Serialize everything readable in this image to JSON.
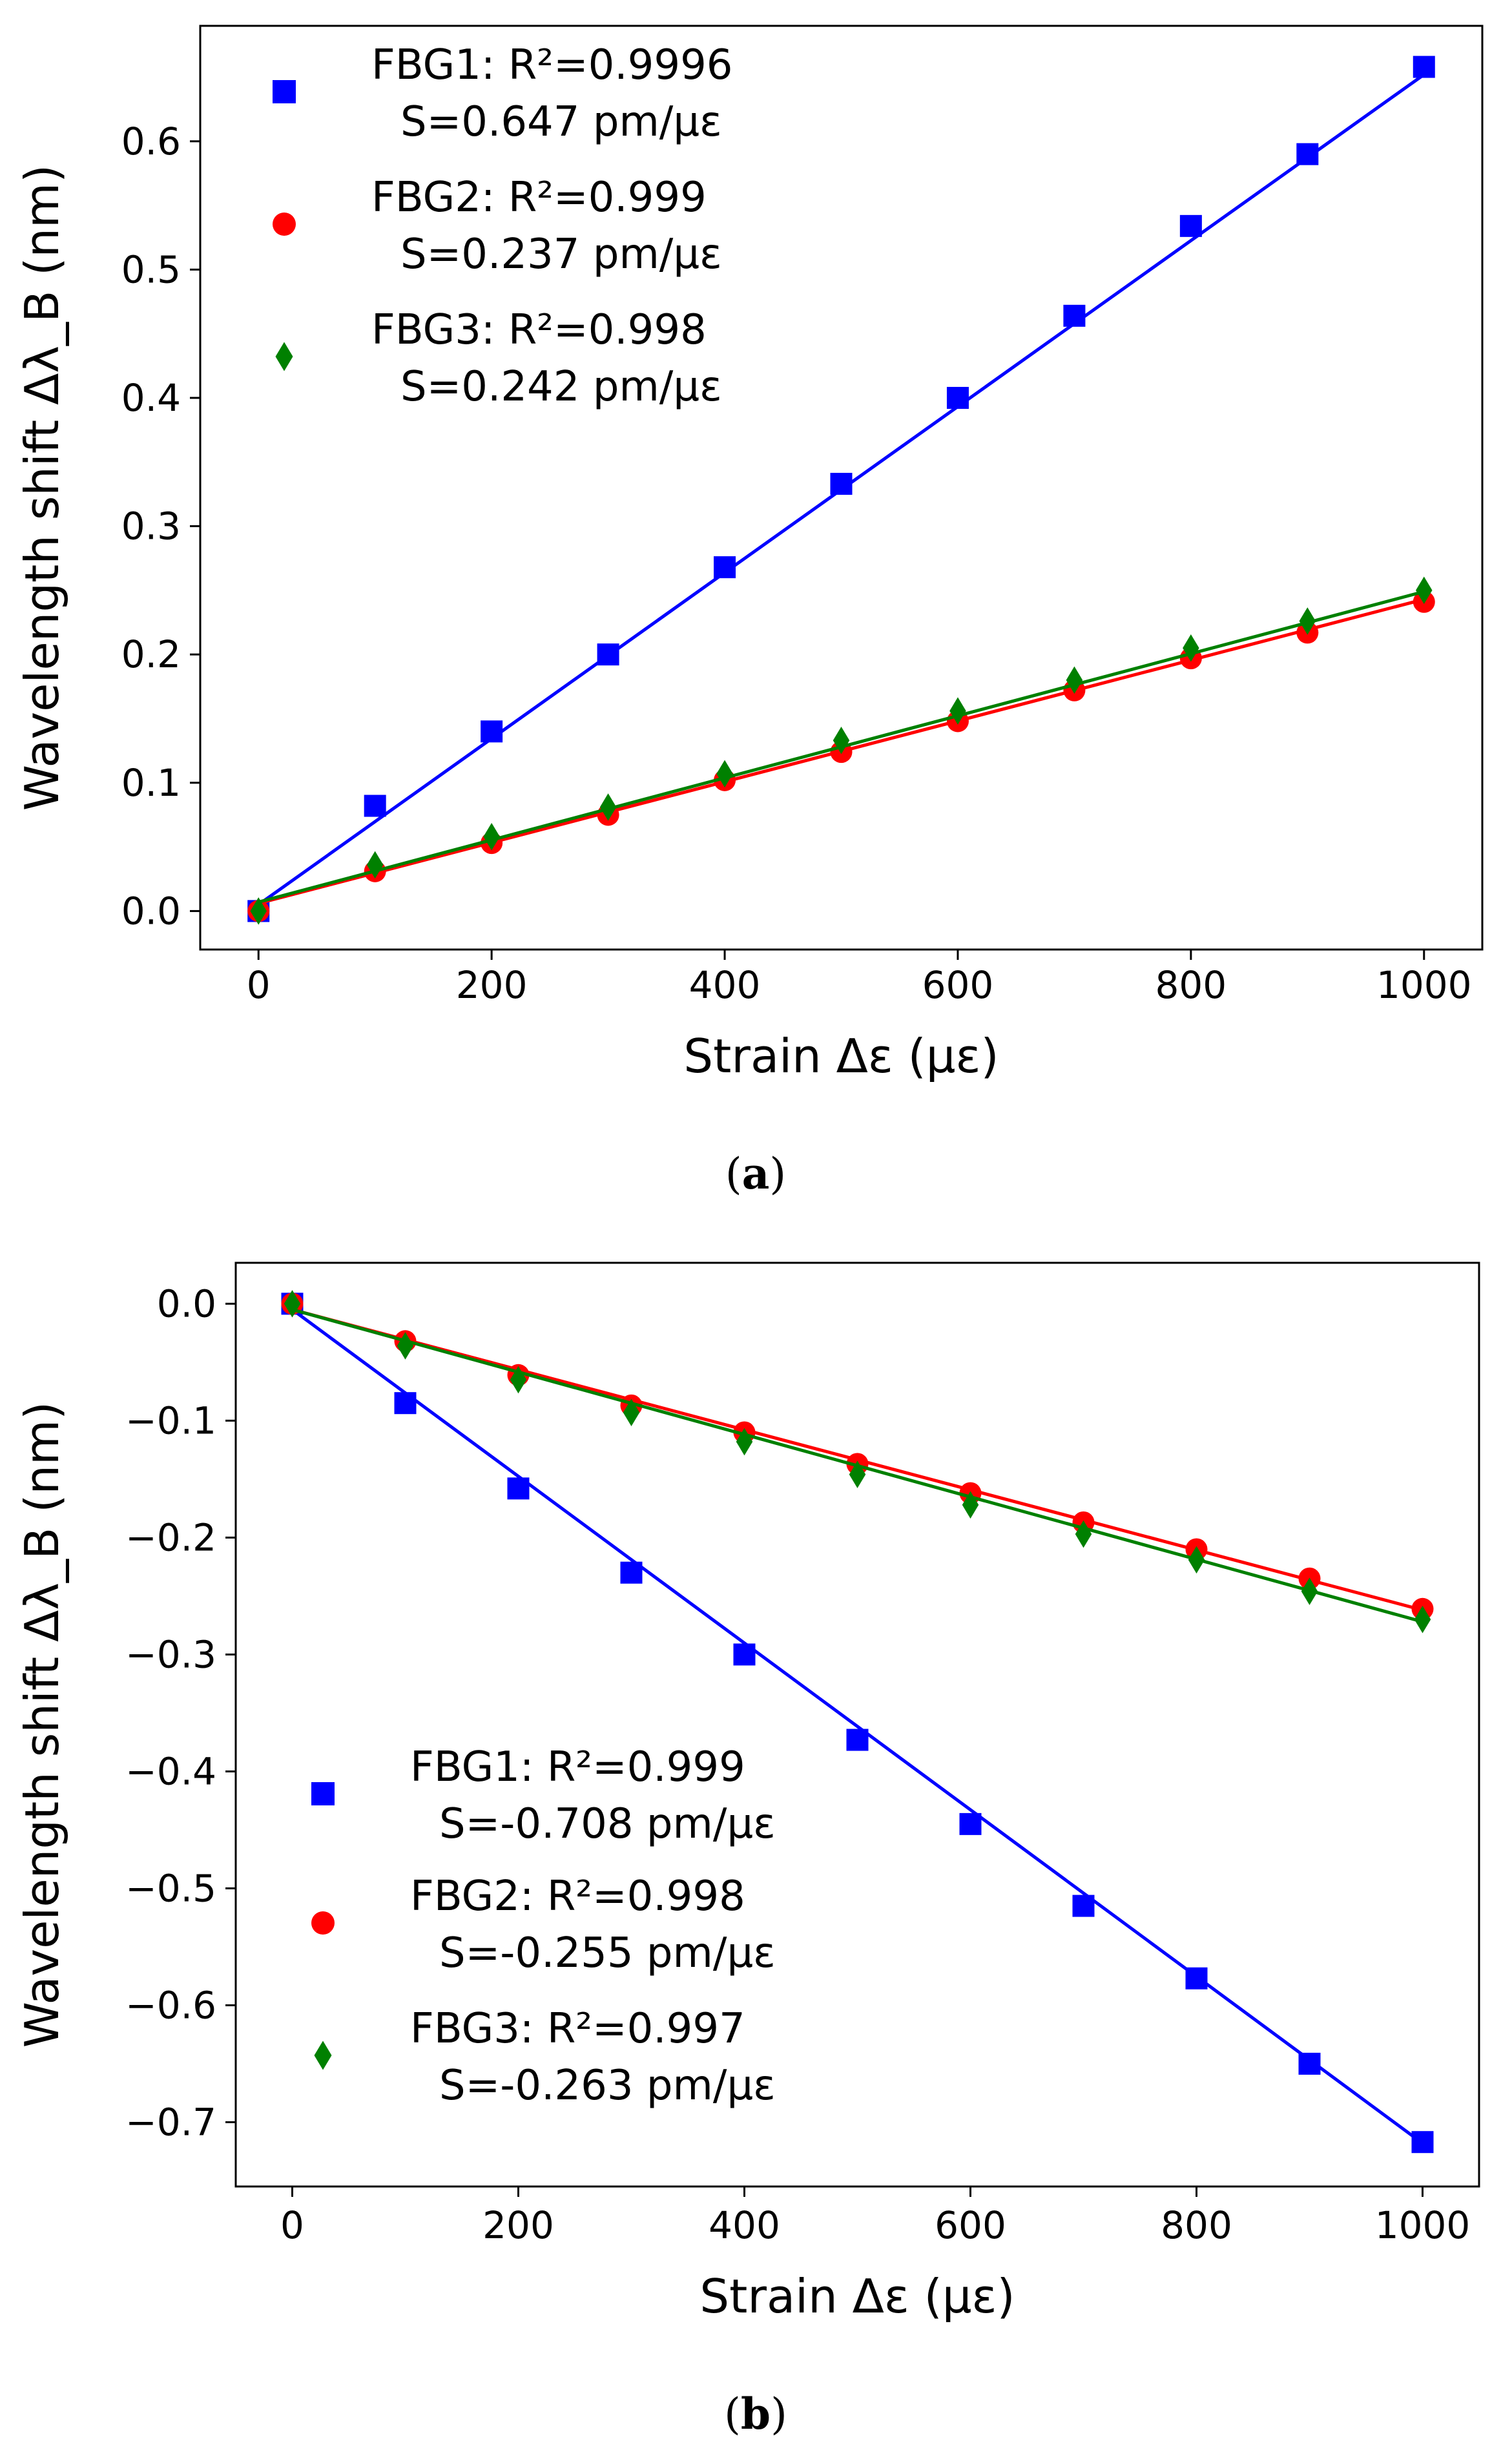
{
  "chart_data": [
    {
      "type": "scatter",
      "caption": "(a)",
      "caption_letter": "a",
      "xlabel": "Strain Δε (με)",
      "ylabel": "Wavelength shift Δλ_B (nm)",
      "xlim": [
        -50,
        1050
      ],
      "ylim": [
        -0.03,
        0.69
      ],
      "xticks": [
        "0",
        "200",
        "400",
        "600",
        "800",
        "1000"
      ],
      "xtick_values": [
        0,
        200,
        400,
        600,
        800,
        1000
      ],
      "yticks": [
        "0.0",
        "0.1",
        "0.2",
        "0.3",
        "0.4",
        "0.5",
        "0.6"
      ],
      "ytick_values": [
        0.0,
        0.1,
        0.2,
        0.3,
        0.4,
        0.5,
        0.6
      ],
      "legend_position": "upper-left",
      "series": [
        {
          "name": "FBG1",
          "legend_line1": "FBG1:  R²=0.9996",
          "legend_line2": "S=0.647 pm/με",
          "color": "#0000ff",
          "marker": "square",
          "x": [
            0,
            100,
            200,
            300,
            400,
            500,
            600,
            700,
            800,
            900,
            1000
          ],
          "y": [
            0.0,
            0.082,
            0.14,
            0.2,
            0.268,
            0.333,
            0.4,
            0.464,
            0.534,
            0.59,
            0.658
          ],
          "fit": [
            0.005,
            0.652
          ]
        },
        {
          "name": "FBG2",
          "legend_line1": "FBG2:  R²=0.999",
          "legend_line2": "S=0.237 pm/με",
          "color": "#ff0000",
          "marker": "circle",
          "x": [
            0,
            100,
            200,
            300,
            400,
            500,
            600,
            700,
            800,
            900,
            1000
          ],
          "y": [
            0.0,
            0.031,
            0.053,
            0.075,
            0.102,
            0.124,
            0.148,
            0.172,
            0.197,
            0.217,
            0.241
          ],
          "fit": [
            0.006,
            0.243
          ]
        },
        {
          "name": "FBG3",
          "legend_line1": "FBG3:  R²=0.998",
          "legend_line2": "S=0.242 pm/με",
          "color": "#008000",
          "marker": "diamond",
          "x": [
            0,
            100,
            200,
            300,
            400,
            500,
            600,
            700,
            800,
            900,
            1000
          ],
          "y": [
            0.0,
            0.036,
            0.058,
            0.081,
            0.107,
            0.133,
            0.156,
            0.18,
            0.205,
            0.226,
            0.25
          ],
          "fit": [
            0.007,
            0.249
          ]
        }
      ]
    },
    {
      "type": "scatter",
      "caption": "(b)",
      "caption_letter": "b",
      "xlabel": "Strain Δε (με)",
      "ylabel": "Wavelength shift Δλ_B (nm)",
      "xlim": [
        -50,
        1050
      ],
      "ylim": [
        -0.755,
        0.035
      ],
      "xticks": [
        "0",
        "200",
        "400",
        "600",
        "800",
        "1000"
      ],
      "xtick_values": [
        0,
        200,
        400,
        600,
        800,
        1000
      ],
      "yticks": [
        "0.0",
        "−0.1",
        "−0.2",
        "−0.3",
        "−0.4",
        "−0.5",
        "−0.6",
        "−0.7"
      ],
      "ytick_values": [
        0.0,
        -0.1,
        -0.2,
        -0.3,
        -0.4,
        -0.5,
        -0.6,
        -0.7
      ],
      "legend_position": "lower-left",
      "series": [
        {
          "name": "FBG1",
          "legend_line1": "FBG1:  R²=0.999",
          "legend_line2": "S=-0.708 pm/με",
          "color": "#0000ff",
          "marker": "square",
          "x": [
            0,
            100,
            200,
            300,
            400,
            500,
            600,
            700,
            800,
            900,
            1000
          ],
          "y": [
            0.0,
            -0.085,
            -0.158,
            -0.23,
            -0.3,
            -0.373,
            -0.445,
            -0.515,
            -0.577,
            -0.65,
            -0.717
          ],
          "fit": [
            -0.005,
            -0.718
          ]
        },
        {
          "name": "FBG2",
          "legend_line1": "FBG2:  R²=0.998",
          "legend_line2": "S=-0.255 pm/με",
          "color": "#ff0000",
          "marker": "circle",
          "x": [
            0,
            100,
            200,
            300,
            400,
            500,
            600,
            700,
            800,
            900,
            1000
          ],
          "y": [
            0.0,
            -0.032,
            -0.061,
            -0.087,
            -0.11,
            -0.137,
            -0.162,
            -0.187,
            -0.21,
            -0.235,
            -0.261
          ],
          "fit": [
            -0.005,
            -0.262
          ]
        },
        {
          "name": "FBG3",
          "legend_line1": "FBG3:  R²=0.997",
          "legend_line2": "S=-0.263 pm/με",
          "color": "#008000",
          "marker": "diamond",
          "x": [
            0,
            100,
            200,
            300,
            400,
            500,
            600,
            700,
            800,
            900,
            1000
          ],
          "y": [
            0.0,
            -0.036,
            -0.065,
            -0.093,
            -0.118,
            -0.146,
            -0.172,
            -0.197,
            -0.219,
            -0.246,
            -0.27
          ],
          "fit": [
            -0.005,
            -0.272
          ]
        }
      ]
    }
  ]
}
